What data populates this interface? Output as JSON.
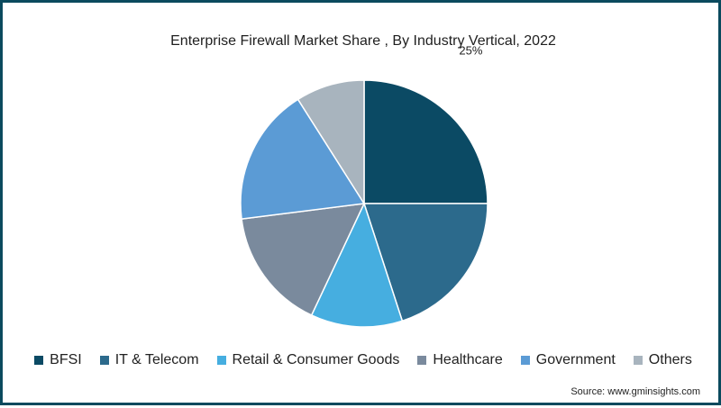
{
  "chart_data": {
    "type": "pie",
    "title": "Enterprise Firewall Market Share , By Industry Vertical, 2022",
    "categories": [
      "BFSI",
      "IT & Telecom",
      "Retail & Consumer Goods",
      "Healthcare",
      "Government",
      "Others"
    ],
    "values": [
      25,
      20,
      12,
      16,
      18,
      9
    ],
    "colors": [
      "#0b4a64",
      "#2c6a8c",
      "#46aee0",
      "#7a8a9d",
      "#5b9bd5",
      "#a8b4be"
    ],
    "data_labels": [
      {
        "category": "BFSI",
        "text": "25%"
      }
    ],
    "legend_position": "bottom"
  },
  "source": "Source: www.gminsights.com"
}
